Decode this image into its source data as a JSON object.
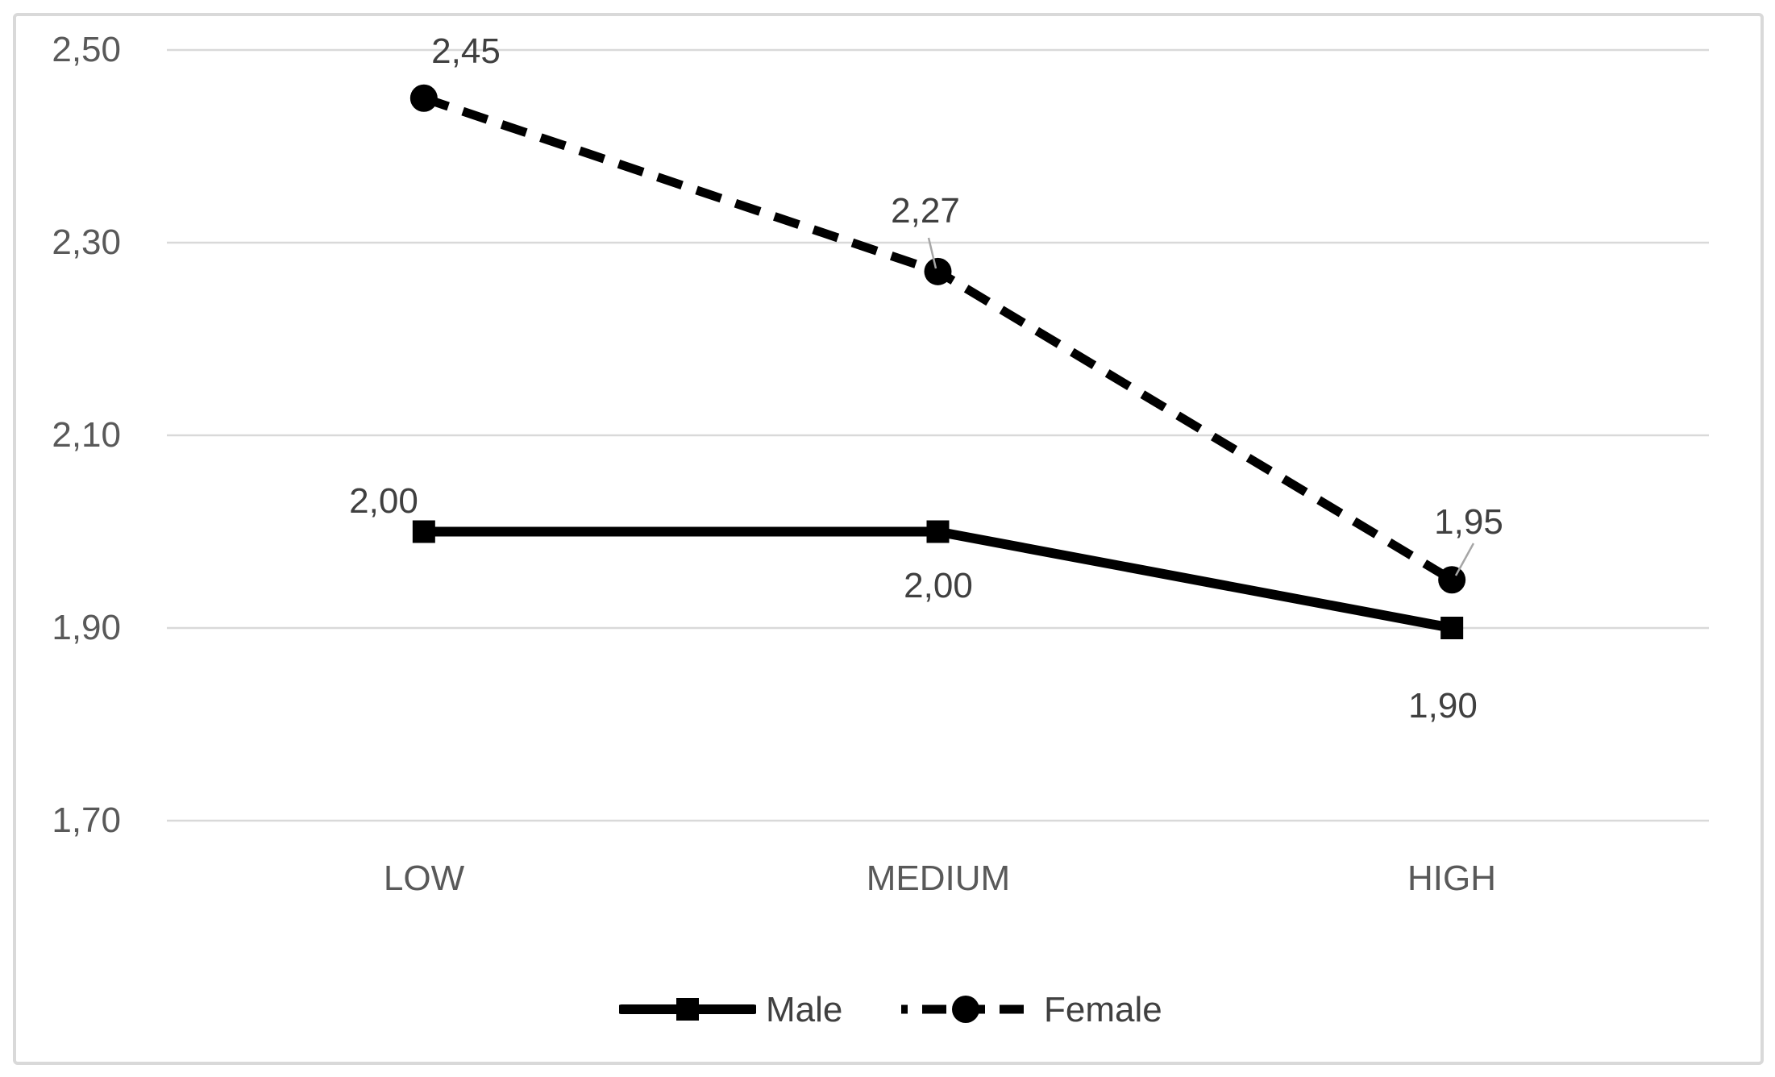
{
  "chart_data": {
    "type": "line",
    "title": "",
    "xlabel": "",
    "ylabel": "",
    "categories": [
      "LOW",
      "MEDIUM",
      "HIGH"
    ],
    "series": [
      {
        "name": "Male",
        "values": [
          2.0,
          2.0,
          1.9
        ],
        "labels": [
          "2,00",
          "2,00",
          "1,90"
        ],
        "line_style": "solid",
        "marker": "square"
      },
      {
        "name": "Female",
        "values": [
          2.45,
          2.27,
          1.95
        ],
        "labels": [
          "2,45",
          "2,27",
          "1,95"
        ],
        "line_style": "dashed",
        "marker": "circle"
      }
    ],
    "y_ticks": [
      "2,50",
      "2,30",
      "2,10",
      "1,90",
      "1,70"
    ],
    "y_tick_values": [
      2.5,
      2.3,
      2.1,
      1.9,
      1.7
    ],
    "ylim": [
      1.7,
      2.5
    ],
    "y_major_unit": 0.2,
    "grid": true,
    "legend_position": "bottom",
    "colors": {
      "series_line": "#000000",
      "marker_fill": "#000000",
      "gridline": "#d9d9d9",
      "chart_border": "#d9d9d9",
      "tick_label": "#595959",
      "data_label": "#404040",
      "legend_label": "#404040",
      "leader_line": "#a6a6a6",
      "background": "#ffffff"
    }
  }
}
